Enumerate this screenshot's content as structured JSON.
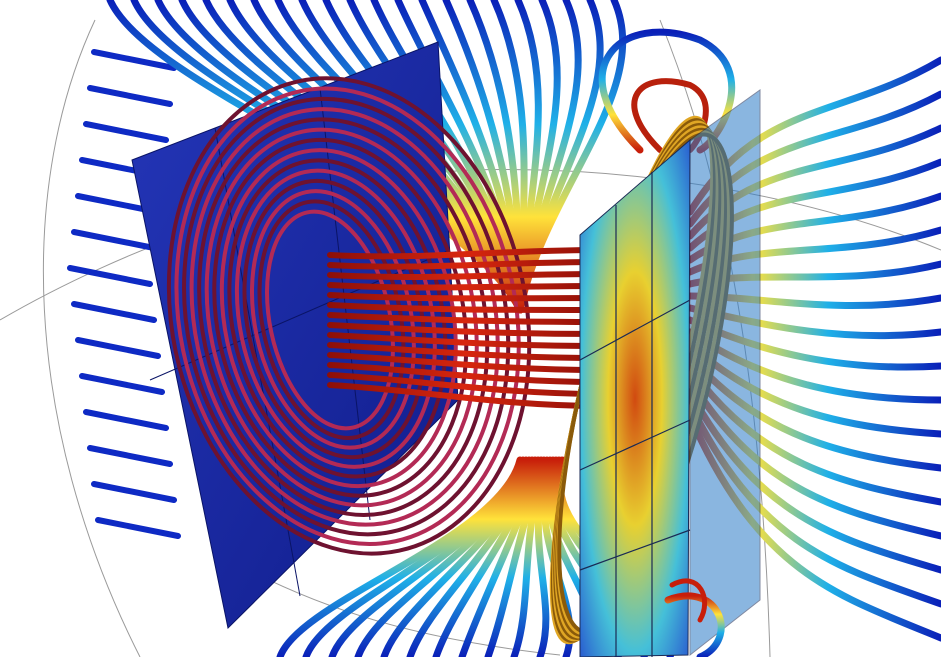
{
  "scene": {
    "description_name": "coil-field-simulation",
    "background": "#ffffff",
    "colors": {
      "field_low": "#0a1fb8",
      "field_mid_low": "#1fb0e8",
      "field_mid": "#ffe23a",
      "field_high": "#c81e0a",
      "coil_left": "#a8234a",
      "coil_right": "#d9a21e",
      "plate_left": "#1a2aa8",
      "plate_right_base": "#2a6ad6"
    },
    "icons": [
      "coil-icon",
      "field-line-icon"
    ]
  }
}
